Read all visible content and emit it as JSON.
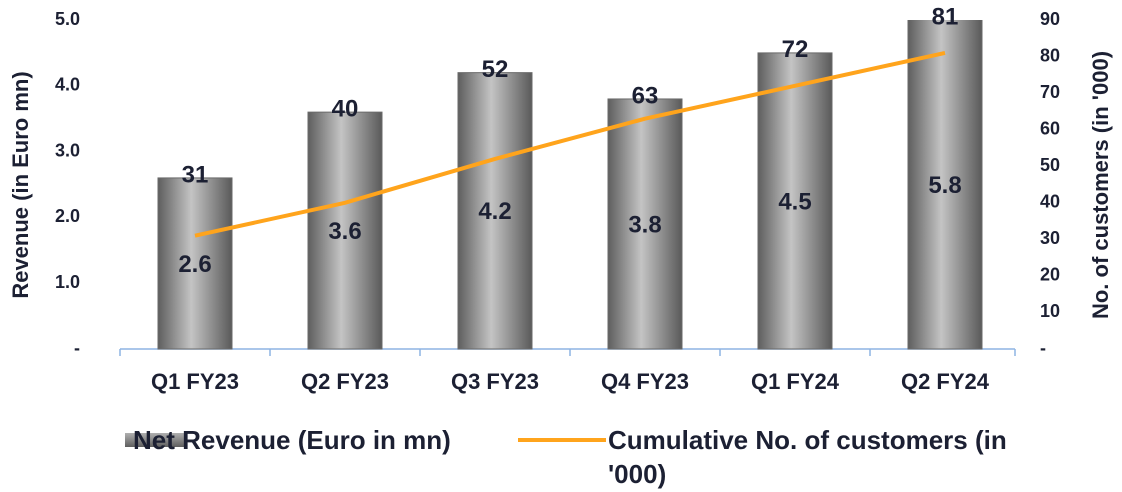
{
  "chart_data": {
    "type": "bar-line",
    "categories": [
      "Q1 FY23",
      "Q2 FY23",
      "Q3 FY23",
      "Q4 FY23",
      "Q1 FY24",
      "Q2 FY24"
    ],
    "series": [
      {
        "name": "Net Revenue (Euro in mn)",
        "type": "bar",
        "color": "#8c8c8c",
        "values": [
          2.6,
          3.6,
          4.2,
          3.8,
          4.5,
          5.8
        ]
      },
      {
        "name": "Cumulative No. of customers (in '000)",
        "type": "line",
        "axis": "y2",
        "color": "#ffa41c",
        "values": [
          31,
          40,
          52,
          63,
          72,
          81
        ]
      }
    ],
    "ylabel": "Revenue (in Euro mn)",
    "y2label": "No. of customers (in '000)",
    "ylim": [
      0,
      5
    ],
    "yticks": [
      {
        "value": 0,
        "label": "-"
      },
      {
        "value": 1,
        "label": "1.0"
      },
      {
        "value": 2,
        "label": "2.0"
      },
      {
        "value": 3,
        "label": "3.0"
      },
      {
        "value": 4,
        "label": "4.0"
      },
      {
        "value": 5,
        "label": "5.0"
      }
    ],
    "y2lim": [
      0,
      90
    ],
    "y2ticks": [
      {
        "value": 0,
        "label": "-"
      },
      10,
      20,
      30,
      40,
      50,
      60,
      70,
      80,
      90
    ],
    "legend": "bottom"
  }
}
